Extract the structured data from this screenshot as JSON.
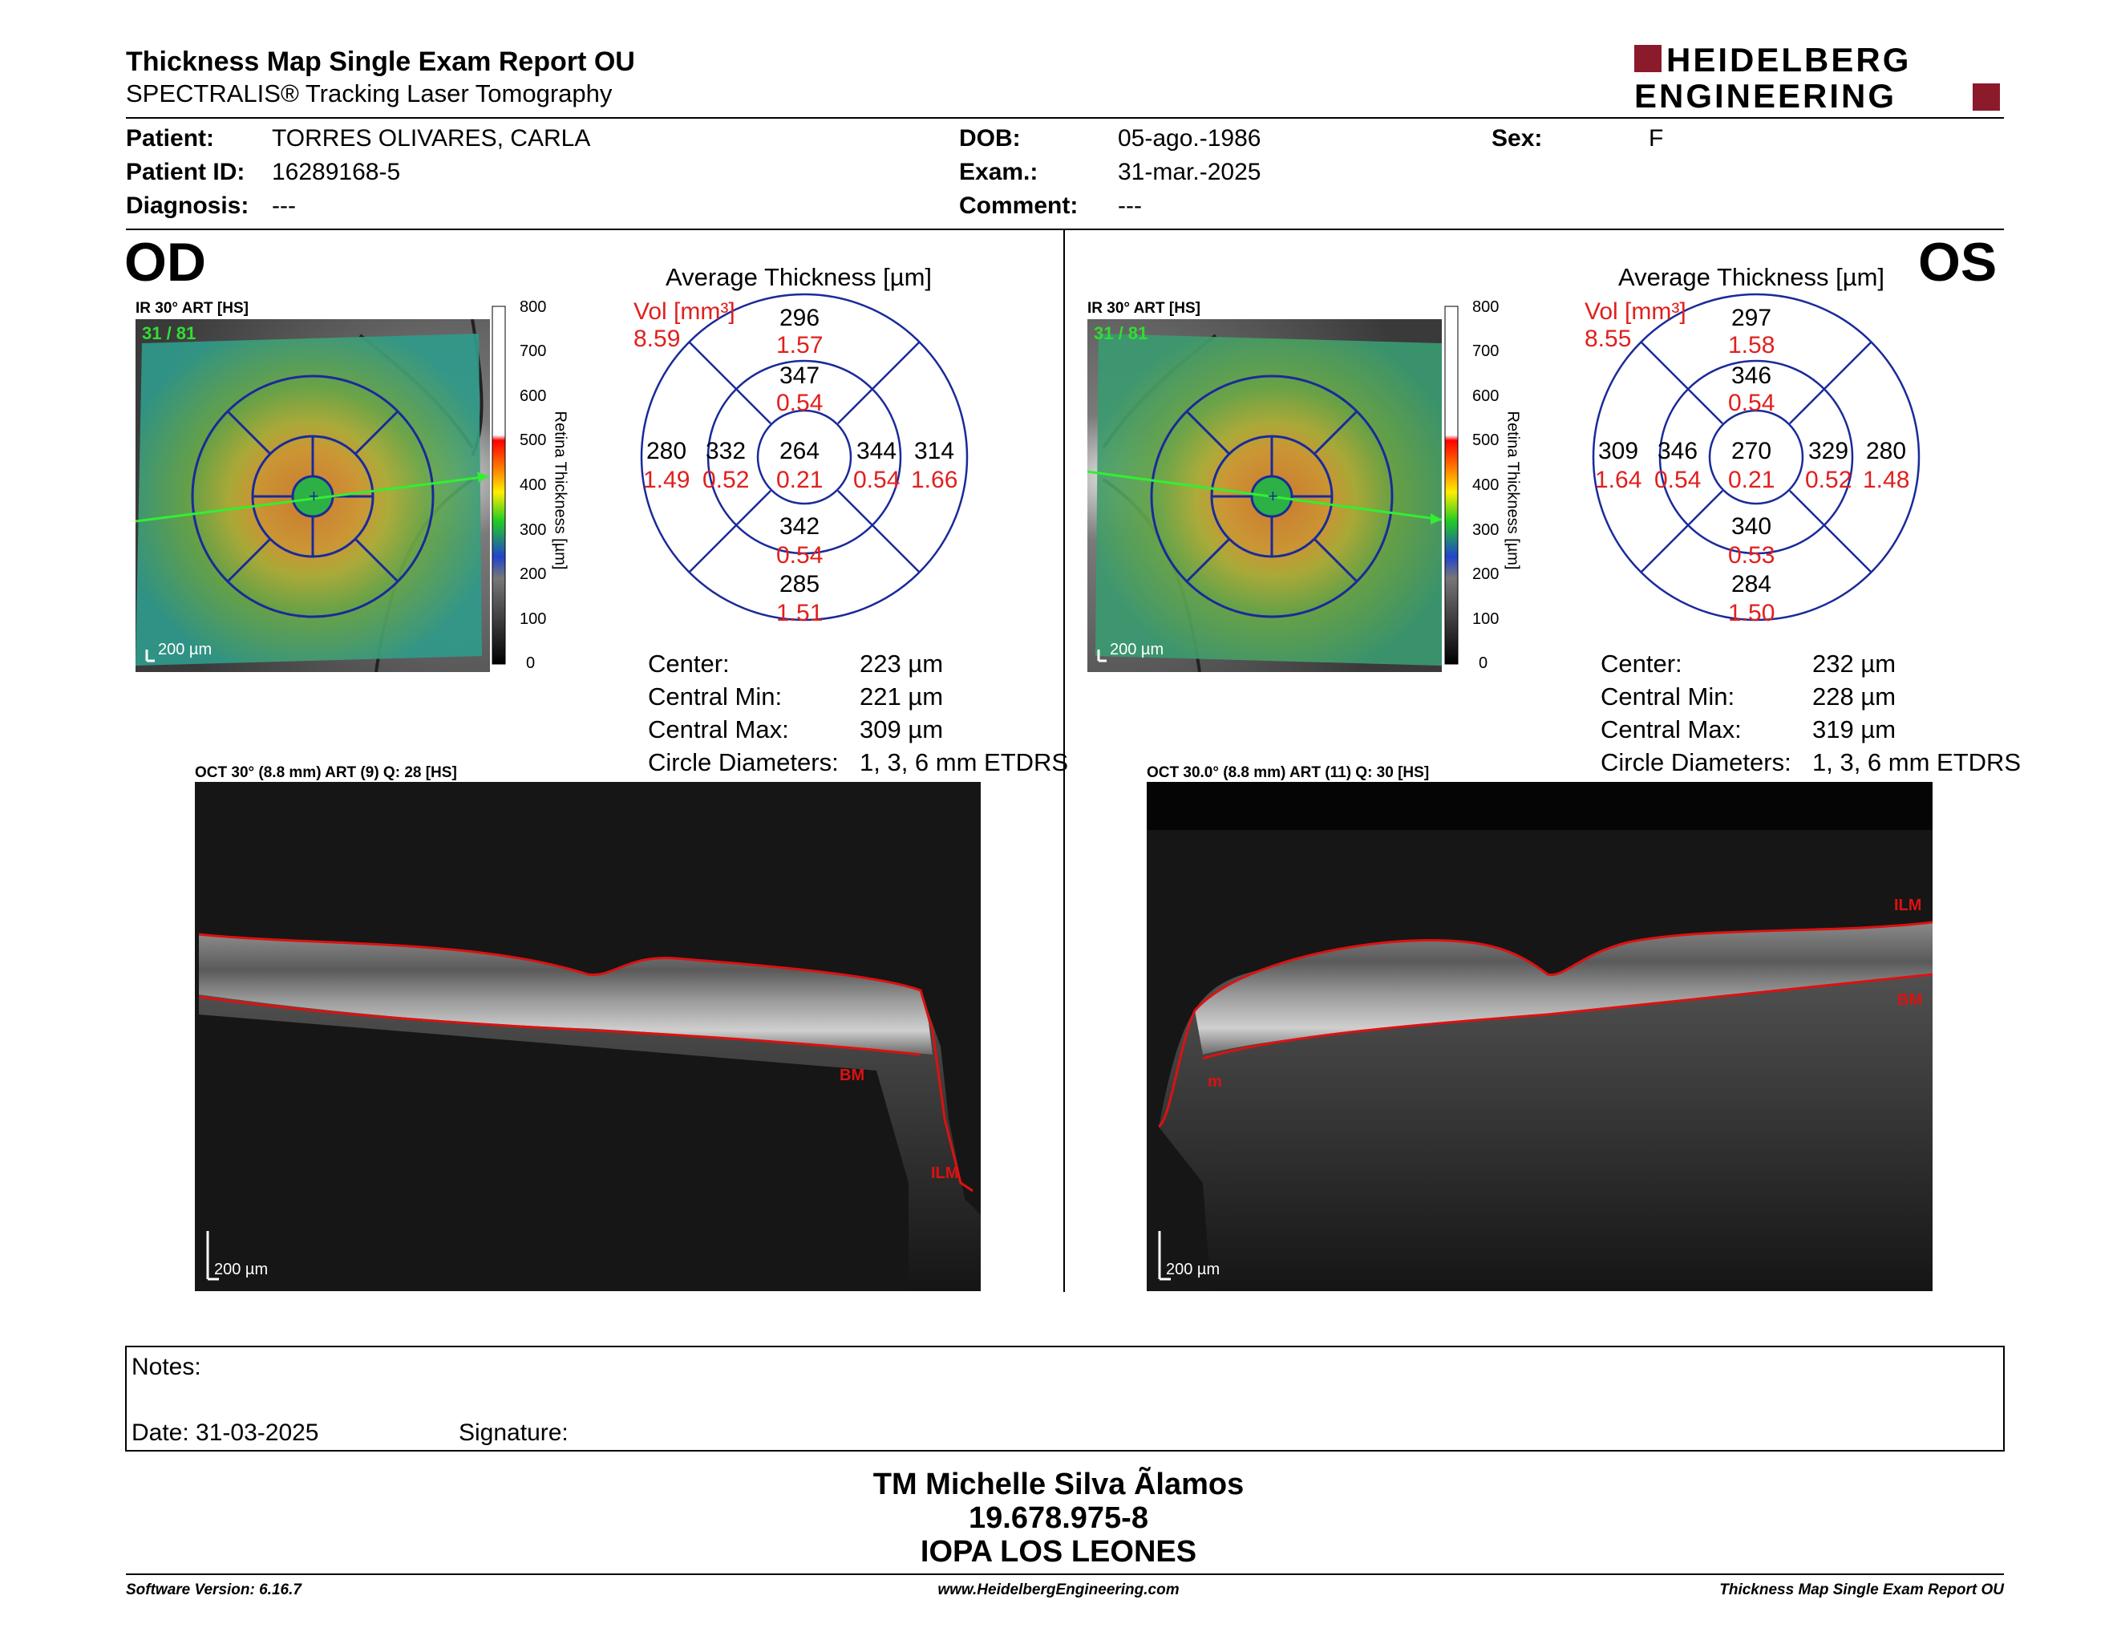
{
  "header": {
    "title": "Thickness Map Single Exam Report OU",
    "subtitle": "SPECTRALIS® Tracking Laser Tomography",
    "logo_line1": "HEIDELBERG",
    "logo_line2": "ENGINEERING",
    "logo_color": "#8b1a2b"
  },
  "patient": {
    "patient_label": "Patient:",
    "patient_value": "TORRES OLIVARES, CARLA",
    "id_label": "Patient ID:",
    "id_value": "16289168-5",
    "diagnosis_label": "Diagnosis:",
    "diagnosis_value": "---",
    "dob_label": "DOB:",
    "dob_value": "05-ago.-1986",
    "exam_label": "Exam.:",
    "exam_value": "31-mar.-2025",
    "comment_label": "Comment:",
    "comment_value": "---",
    "sex_label": "Sex:",
    "sex_value": "F"
  },
  "od": {
    "eye": "OD",
    "ir_label": "IR 30° ART [HS]",
    "frames": "31 / 81",
    "scale_bar": "200 µm",
    "colorbar_ticks": [
      "800",
      "700",
      "600",
      "500",
      "400",
      "300",
      "200",
      "100",
      "0"
    ],
    "colorbar_title": "Retina Thickness [µm]",
    "avg_title": "Average Thickness [µm]",
    "vol_label": "Vol [mm³]",
    "vol_value": "8.59",
    "sectors": {
      "outer_top": "296",
      "outer_top_vol": "1.57",
      "inner_top": "347",
      "inner_top_vol": "0.54",
      "outer_left": "280",
      "outer_left_vol": "1.49",
      "inner_left": "332",
      "inner_left_vol": "0.52",
      "center": "264",
      "center_vol": "0.21",
      "inner_right": "344",
      "inner_right_vol": "0.54",
      "outer_right": "314",
      "outer_right_vol": "1.66",
      "inner_bottom": "342",
      "inner_bottom_vol": "0.54",
      "outer_bottom": "285",
      "outer_bottom_vol": "1.51"
    },
    "stats": {
      "center_label": "Center:",
      "center_value": "223 µm",
      "min_label": "Central Min:",
      "min_value": "221 µm",
      "max_label": "Central Max:",
      "max_value": "309 µm",
      "diam_label": "Circle Diameters:",
      "diam_value": "1, 3, 6 mm ETDRS"
    },
    "oct_label": "OCT 30° (8.8 mm) ART (9) Q: 28 [HS]",
    "oct_ilm": "ILM",
    "oct_bm": "BM",
    "oct_scale": "200 µm"
  },
  "os": {
    "eye": "OS",
    "ir_label": "IR 30° ART [HS]",
    "frames": "31 / 81",
    "scale_bar": "200 µm",
    "colorbar_ticks": [
      "800",
      "700",
      "600",
      "500",
      "400",
      "300",
      "200",
      "100",
      "0"
    ],
    "colorbar_title": "Retina Thickness [µm]",
    "avg_title": "Average Thickness [µm]",
    "vol_label": "Vol [mm³]",
    "vol_value": "8.55",
    "sectors": {
      "outer_top": "297",
      "outer_top_vol": "1.58",
      "inner_top": "346",
      "inner_top_vol": "0.54",
      "outer_left": "309",
      "outer_left_vol": "1.64",
      "inner_left": "346",
      "inner_left_vol": "0.54",
      "center": "270",
      "center_vol": "0.21",
      "inner_right": "329",
      "inner_right_vol": "0.52",
      "outer_right": "280",
      "outer_right_vol": "1.48",
      "inner_bottom": "340",
      "inner_bottom_vol": "0.53",
      "outer_bottom": "284",
      "outer_bottom_vol": "1.50"
    },
    "stats": {
      "center_label": "Center:",
      "center_value": "232 µm",
      "min_label": "Central Min:",
      "min_value": "228 µm",
      "max_label": "Central Max:",
      "max_value": "319 µm",
      "diam_label": "Circle Diameters:",
      "diam_value": "1, 3, 6 mm ETDRS"
    },
    "oct_label": "OCT 30.0° (8.8 mm) ART (11) Q: 30 [HS]",
    "oct_ilm": "ILM",
    "oct_bm": "BM",
    "oct_m": "m",
    "oct_scale": "200 µm"
  },
  "notes": {
    "notes_label": "Notes:",
    "date_label": "Date: 31-03-2025",
    "signature_label": "Signature:"
  },
  "signature_block": {
    "name": "TM Michelle Silva Ãlamos",
    "rut": "19.678.975-8",
    "clinic": "IOPA LOS LEONES"
  },
  "footer": {
    "software": "Software Version: 6.16.7",
    "website": "www.HeidelbergEngineering.com",
    "report": "Thickness Map Single Exam Report OU"
  },
  "colors": {
    "vol_red": "#e0201e",
    "grid_blue": "#1a2a9a",
    "frame_green": "#33dd33",
    "segmentation_red": "#dd1111"
  }
}
